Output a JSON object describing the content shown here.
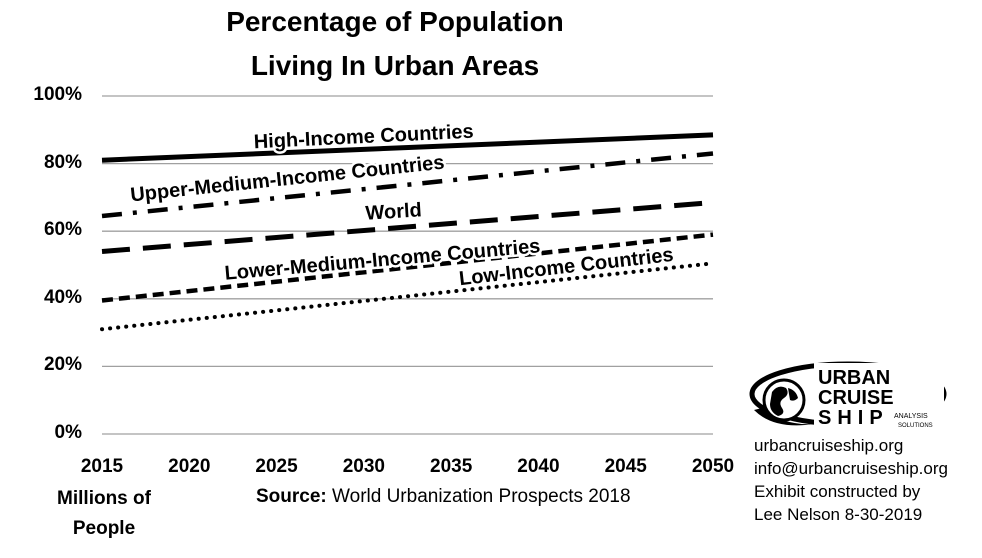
{
  "chart_data": {
    "type": "line",
    "title": "Percentage of Population Living In Urban Areas",
    "title_lines": [
      "Percentage of Population",
      "Living In Urban Areas"
    ],
    "x": [
      2015,
      2050
    ],
    "xticks": [
      "2015",
      "2020",
      "2025",
      "2030",
      "2035",
      "2040",
      "2045",
      "2050"
    ],
    "yticks": [
      "100%",
      "80%",
      "60%",
      "40%",
      "20%",
      "0%"
    ],
    "ylim": [
      0,
      100
    ],
    "xlim": [
      2015,
      2050
    ],
    "grid": true,
    "series": [
      {
        "name": "High-Income Countries",
        "values": [
          81,
          88.5
        ],
        "style": "solid"
      },
      {
        "name": "Upper-Medium-Income Countries",
        "values": [
          64.5,
          83
        ],
        "style": "dash-dot"
      },
      {
        "name": "World",
        "values": [
          54,
          68.5
        ],
        "style": "long-dash"
      },
      {
        "name": "Lower-Medium-Income Countries",
        "values": [
          39.5,
          59
        ],
        "style": "short-dash"
      },
      {
        "name": "Low-Income Countries",
        "values": [
          31,
          50.5
        ],
        "style": "dotted"
      }
    ]
  },
  "footer": {
    "xaxis_label_line1": "Millions of",
    "xaxis_label_line2": "People",
    "source_label": "Source:",
    "source_text": "World Urbanization Prospects 2018"
  },
  "logo": {
    "line1": "URBAN",
    "line2": "CRUISE",
    "line3": "SHIP",
    "sub1": "ANALYSIS",
    "sub2": "SOLUTIONS"
  },
  "info": {
    "website": "urbancruiseship.org",
    "email": "info@urbancruiseship.org",
    "credit_line1": "Exhibit constructed by",
    "credit_line2": "Lee Nelson 8-30-2019"
  }
}
